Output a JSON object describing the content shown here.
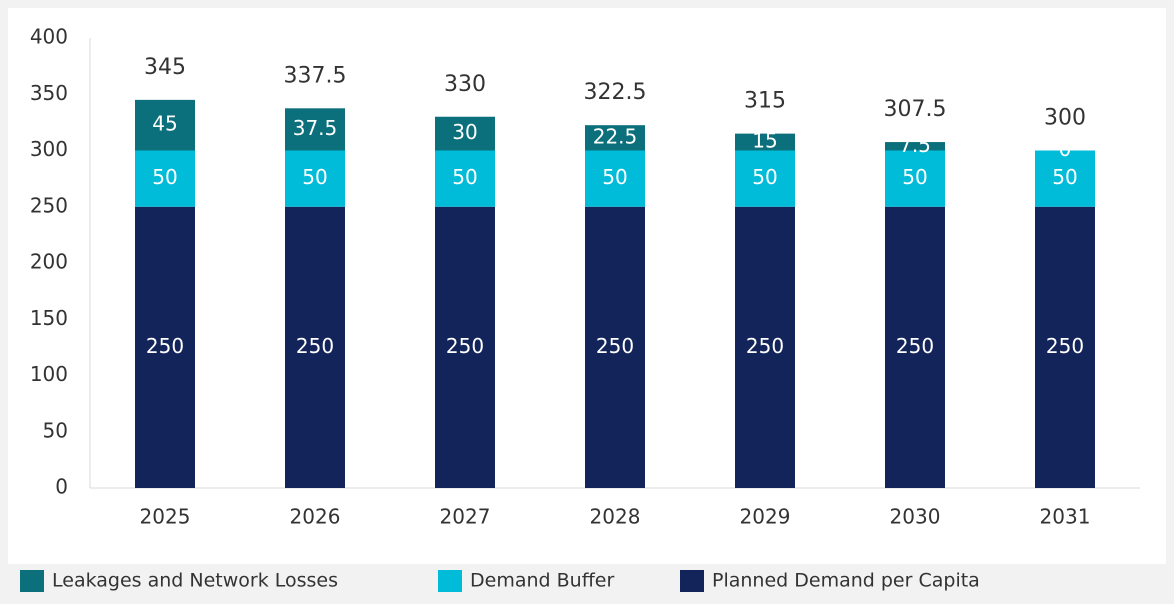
{
  "chart_data": {
    "type": "stacked_bar",
    "categories": [
      "2025",
      "2026",
      "2027",
      "2028",
      "2029",
      "2030",
      "2031"
    ],
    "series": [
      {
        "name": "Leakages and Network Losses",
        "color": "#0b6f7c",
        "values": [
          45,
          37.5,
          30,
          22.5,
          15,
          7.5,
          0
        ]
      },
      {
        "name": "Demand Buffer",
        "color": "#00bcd8",
        "values": [
          50,
          50,
          50,
          50,
          50,
          50,
          50
        ]
      },
      {
        "name": "Planned Demand per Capita",
        "color": "#13245a",
        "values": [
          250,
          250,
          250,
          250,
          250,
          250,
          250
        ]
      }
    ],
    "totals": [
      345,
      337.5,
      330,
      322.5,
      315,
      307.5,
      300
    ],
    "ylim": [
      0,
      400
    ],
    "yticks": [
      0,
      50,
      100,
      150,
      200,
      250,
      300,
      350,
      400
    ],
    "grid": false,
    "legend": "bottom"
  }
}
